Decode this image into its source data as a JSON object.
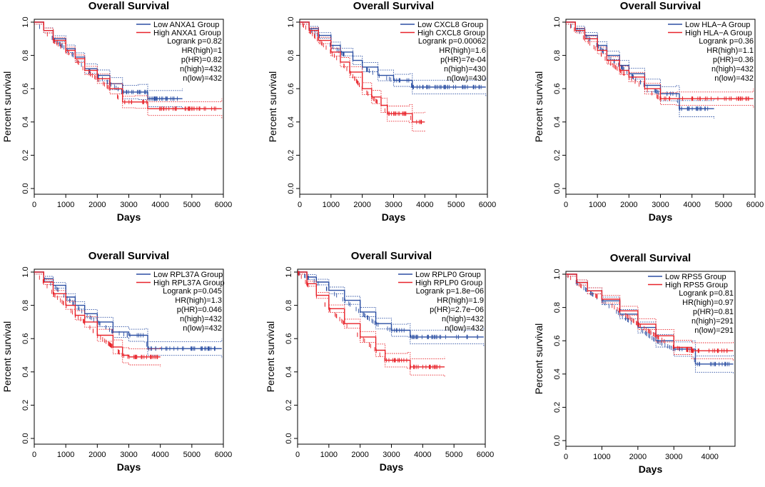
{
  "chart_data": [
    {
      "type": "line",
      "title": "Overall Survival",
      "xlabel": "Days",
      "ylabel": "Percent survival",
      "xlim": [
        0,
        6000
      ],
      "ylim": [
        0,
        1
      ],
      "xticks": [
        "0",
        "1000",
        "2000",
        "3000",
        "4000",
        "5000",
        "6000"
      ],
      "yticks": [
        "0.0",
        "0.2",
        "0.4",
        "0.6",
        "0.8",
        "1.0"
      ],
      "legend": [
        "Low ANXA1 Group",
        "High ANXA1 Group"
      ],
      "stats": [
        "Logrank p=0.82",
        "HR(high)=1",
        "p(HR)=0.82",
        "n(high)=432",
        "n(low)=432"
      ],
      "series": [
        {
          "name": "Low ANXA1 Group",
          "color": "#2b4fa3",
          "points": [
            [
              0,
              1.0
            ],
            [
              300,
              0.95
            ],
            [
              600,
              0.9
            ],
            [
              1000,
              0.84
            ],
            [
              1300,
              0.79
            ],
            [
              1600,
              0.72
            ],
            [
              2000,
              0.68
            ],
            [
              2400,
              0.63
            ],
            [
              2800,
              0.58
            ],
            [
              3300,
              0.58
            ],
            [
              3600,
              0.58
            ],
            [
              3600,
              0.54
            ],
            [
              4700,
              0.54
            ]
          ]
        },
        {
          "name": "High ANXA1 Group",
          "color": "#e8232a",
          "points": [
            [
              0,
              1.0
            ],
            [
              300,
              0.95
            ],
            [
              600,
              0.89
            ],
            [
              1000,
              0.83
            ],
            [
              1300,
              0.78
            ],
            [
              1600,
              0.71
            ],
            [
              2000,
              0.66
            ],
            [
              2400,
              0.6
            ],
            [
              2800,
              0.52
            ],
            [
              3200,
              0.52
            ],
            [
              3600,
              0.52
            ],
            [
              3600,
              0.48
            ],
            [
              5950,
              0.48
            ]
          ]
        }
      ]
    },
    {
      "type": "line",
      "title": "Overall Survival",
      "xlabel": "Days",
      "ylabel": "Percent survival",
      "xlim": [
        0,
        6000
      ],
      "ylim": [
        0,
        1
      ],
      "xticks": [
        "0",
        "1000",
        "2000",
        "3000",
        "4000",
        "5000",
        "6000"
      ],
      "yticks": [
        "0.0",
        "0.2",
        "0.4",
        "0.6",
        "0.8",
        "1.0"
      ],
      "legend": [
        "Low CXCL8 Group",
        "High CXCL8 Group"
      ],
      "stats": [
        "Logrank p=0.00062",
        "HR(high)=1.6",
        "p(HR)=7e-04",
        "n(high)=430",
        "n(low)=430"
      ],
      "series": [
        {
          "name": "Low CXCL8 Group",
          "color": "#2b4fa3",
          "points": [
            [
              0,
              1.0
            ],
            [
              300,
              0.96
            ],
            [
              600,
              0.92
            ],
            [
              1000,
              0.86
            ],
            [
              1300,
              0.82
            ],
            [
              1700,
              0.77
            ],
            [
              2000,
              0.73
            ],
            [
              2500,
              0.68
            ],
            [
              3000,
              0.65
            ],
            [
              3500,
              0.65
            ],
            [
              3600,
              0.61
            ],
            [
              5950,
              0.61
            ]
          ]
        },
        {
          "name": "High CXCL8 Group",
          "color": "#e8232a",
          "points": [
            [
              0,
              1.0
            ],
            [
              300,
              0.95
            ],
            [
              600,
              0.89
            ],
            [
              1000,
              0.82
            ],
            [
              1300,
              0.76
            ],
            [
              1600,
              0.7
            ],
            [
              2000,
              0.6
            ],
            [
              2300,
              0.55
            ],
            [
              2600,
              0.5
            ],
            [
              2800,
              0.45
            ],
            [
              3500,
              0.45
            ],
            [
              3600,
              0.4
            ],
            [
              4000,
              0.4
            ]
          ]
        }
      ]
    },
    {
      "type": "line",
      "title": "Overall Survival",
      "xlabel": "Days",
      "ylabel": "Percent survival",
      "xlim": [
        0,
        6000
      ],
      "ylim": [
        0,
        1
      ],
      "xticks": [
        "0",
        "1000",
        "2000",
        "3000",
        "4000",
        "5000",
        "6000"
      ],
      "yticks": [
        "0.0",
        "0.2",
        "0.4",
        "0.6",
        "0.8",
        "1.0"
      ],
      "legend": [
        "Low HLA−A Group",
        "High HLA−A Group"
      ],
      "stats": [
        "Logrank p=0.36",
        "HR(high)=1.1",
        "p(HR)=0.36",
        "n(high)=432",
        "n(low)=432"
      ],
      "series": [
        {
          "name": "Low HLA-A Group",
          "color": "#2b4fa3",
          "points": [
            [
              0,
              1.0
            ],
            [
              300,
              0.96
            ],
            [
              600,
              0.92
            ],
            [
              1000,
              0.86
            ],
            [
              1300,
              0.8
            ],
            [
              1700,
              0.74
            ],
            [
              2000,
              0.69
            ],
            [
              2500,
              0.62
            ],
            [
              3000,
              0.57
            ],
            [
              3500,
              0.57
            ],
            [
              3600,
              0.48
            ],
            [
              4700,
              0.48
            ]
          ]
        },
        {
          "name": "High HLA-A Group",
          "color": "#e8232a",
          "points": [
            [
              0,
              1.0
            ],
            [
              300,
              0.95
            ],
            [
              600,
              0.9
            ],
            [
              1000,
              0.83
            ],
            [
              1300,
              0.77
            ],
            [
              1700,
              0.71
            ],
            [
              2000,
              0.67
            ],
            [
              2500,
              0.6
            ],
            [
              3000,
              0.54
            ],
            [
              3500,
              0.54
            ],
            [
              5950,
              0.54
            ]
          ]
        }
      ]
    },
    {
      "type": "line",
      "title": "Overall Survival",
      "xlabel": "Days",
      "ylabel": "Percent survival",
      "xlim": [
        0,
        6000
      ],
      "ylim": [
        0,
        1
      ],
      "xticks": [
        "0",
        "1000",
        "2000",
        "3000",
        "4000",
        "5000",
        "6000"
      ],
      "yticks": [
        "0.0",
        "0.2",
        "0.4",
        "0.6",
        "0.8",
        "1.0"
      ],
      "legend": [
        "Low RPL37A Group",
        "High RPL37A Group"
      ],
      "stats": [
        "Logrank p=0.045",
        "HR(high)=1.3",
        "p(HR)=0.046",
        "n(high)=432",
        "n(low)=432"
      ],
      "series": [
        {
          "name": "Low RPL37A Group",
          "color": "#2b4fa3",
          "points": [
            [
              0,
              1.0
            ],
            [
              300,
              0.96
            ],
            [
              600,
              0.92
            ],
            [
              1000,
              0.85
            ],
            [
              1300,
              0.8
            ],
            [
              1600,
              0.75
            ],
            [
              2000,
              0.7
            ],
            [
              2500,
              0.64
            ],
            [
              3000,
              0.62
            ],
            [
              3500,
              0.62
            ],
            [
              3600,
              0.54
            ],
            [
              5950,
              0.54
            ]
          ]
        },
        {
          "name": "High RPL37A Group",
          "color": "#e8232a",
          "points": [
            [
              0,
              1.0
            ],
            [
              300,
              0.94
            ],
            [
              600,
              0.87
            ],
            [
              1000,
              0.8
            ],
            [
              1300,
              0.74
            ],
            [
              1600,
              0.7
            ],
            [
              2000,
              0.62
            ],
            [
              2500,
              0.55
            ],
            [
              2800,
              0.5
            ],
            [
              3000,
              0.49
            ],
            [
              4000,
              0.49
            ]
          ]
        }
      ]
    },
    {
      "type": "line",
      "title": "Overall Survival",
      "xlabel": "Days",
      "ylabel": "Percent survival",
      "xlim": [
        0,
        6000
      ],
      "ylim": [
        0,
        1
      ],
      "xticks": [
        "0",
        "1000",
        "2000",
        "3000",
        "4000",
        "5000",
        "6000"
      ],
      "yticks": [
        "0.0",
        "0.2",
        "0.4",
        "0.6",
        "0.8",
        "1.0"
      ],
      "legend": [
        "Low RPLP0 Group",
        "High RPLP0 Group"
      ],
      "stats": [
        "Logrank p=1.8e−06",
        "HR(high)=1.9",
        "p(HR)=2.7e−06",
        "n(high)=432",
        "n(low)=432"
      ],
      "series": [
        {
          "name": "Low RPLP0 Group",
          "color": "#2b4fa3",
          "points": [
            [
              0,
              1.0
            ],
            [
              300,
              0.97
            ],
            [
              600,
              0.94
            ],
            [
              1000,
              0.89
            ],
            [
              1500,
              0.83
            ],
            [
              2000,
              0.76
            ],
            [
              2500,
              0.69
            ],
            [
              3000,
              0.65
            ],
            [
              3500,
              0.65
            ],
            [
              3600,
              0.61
            ],
            [
              5950,
              0.61
            ]
          ]
        },
        {
          "name": "High RPLP0 Group",
          "color": "#e8232a",
          "points": [
            [
              0,
              1.0
            ],
            [
              300,
              0.93
            ],
            [
              600,
              0.86
            ],
            [
              1000,
              0.78
            ],
            [
              1500,
              0.69
            ],
            [
              2000,
              0.61
            ],
            [
              2500,
              0.53
            ],
            [
              2800,
              0.47
            ],
            [
              3500,
              0.47
            ],
            [
              3600,
              0.43
            ],
            [
              4700,
              0.43
            ]
          ]
        }
      ]
    },
    {
      "type": "line",
      "title": "Overall Survival",
      "xlabel": "Days",
      "ylabel": "Percent survival",
      "xlim": [
        0,
        4700
      ],
      "ylim": [
        0,
        1
      ],
      "xticks": [
        "0",
        "1000",
        "2000",
        "3000",
        "4000"
      ],
      "yticks": [
        "0.0",
        "0.2",
        "0.4",
        "0.6",
        "0.8",
        "1.0"
      ],
      "legend": [
        "Low RPS5 Group",
        "High RPS5 Group"
      ],
      "stats": [
        "Logrank p=0.81",
        "HR(high)=0.97",
        "p(HR)=0.81",
        "n(high)=291",
        "n(low)=291"
      ],
      "series": [
        {
          "name": "Low RPS5 Group",
          "color": "#2b4fa3",
          "points": [
            [
              0,
              1.0
            ],
            [
              300,
              0.95
            ],
            [
              600,
              0.9
            ],
            [
              1000,
              0.84
            ],
            [
              1500,
              0.76
            ],
            [
              2000,
              0.68
            ],
            [
              2500,
              0.6
            ],
            [
              3000,
              0.55
            ],
            [
              3500,
              0.55
            ],
            [
              3600,
              0.46
            ],
            [
              4650,
              0.46
            ]
          ]
        },
        {
          "name": "High RPS5 Group",
          "color": "#e8232a",
          "points": [
            [
              0,
              1.0
            ],
            [
              300,
              0.95
            ],
            [
              600,
              0.9
            ],
            [
              1000,
              0.85
            ],
            [
              1500,
              0.78
            ],
            [
              2000,
              0.7
            ],
            [
              2500,
              0.63
            ],
            [
              3000,
              0.56
            ],
            [
              3500,
              0.54
            ],
            [
              4650,
              0.54
            ]
          ]
        }
      ]
    }
  ]
}
